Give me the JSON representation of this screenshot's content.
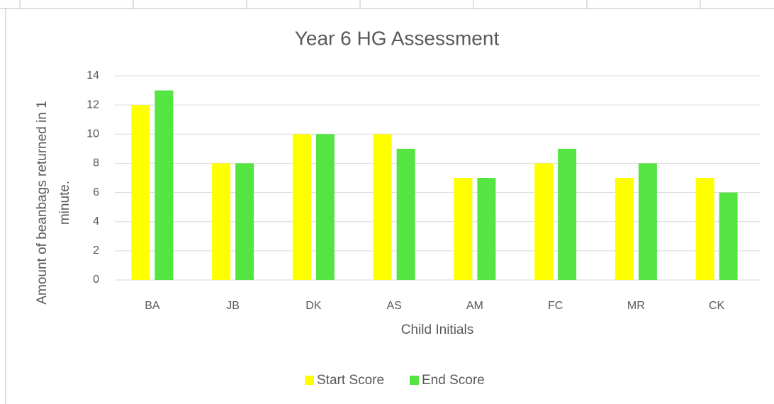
{
  "chart_data": {
    "type": "bar",
    "title": "Year 6 HG Assessment",
    "x_label": "Child Initials",
    "y_label": "Amount of beanbags returned in 1 minute.",
    "categories": [
      "BA",
      "JB",
      "DK",
      "AS",
      "AM",
      "FC",
      "MR",
      "CK"
    ],
    "series": [
      {
        "name": "Start Score",
        "color": "#ffff00",
        "values": [
          12,
          8,
          10,
          10,
          7,
          8,
          7,
          7
        ]
      },
      {
        "name": "End Score",
        "color": "#55e543",
        "values": [
          13,
          8,
          10,
          9,
          7,
          9,
          8,
          6
        ]
      }
    ],
    "ylim": [
      0,
      14
    ],
    "yticks": [
      0,
      2,
      4,
      6,
      8,
      10,
      12,
      14
    ],
    "grid": true,
    "legend": "bottom"
  }
}
